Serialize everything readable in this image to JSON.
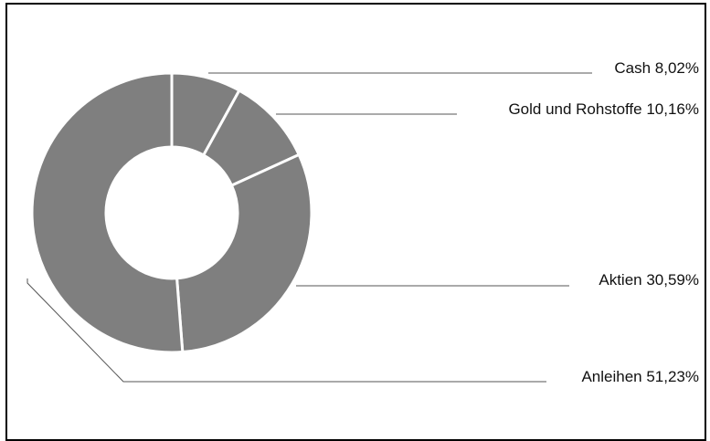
{
  "chart_data": {
    "type": "pie",
    "variant": "donut",
    "title": "",
    "legend": "none",
    "categories": [
      "Cash",
      "Gold und Rohstoffe",
      "Aktien",
      "Anleihen"
    ],
    "values": [
      8.02,
      10.16,
      30.59,
      51.23
    ],
    "unit": "%",
    "data_labels": [
      "Cash 8,02%",
      "Gold und Rohstoffe 10,16%",
      "Aktien 30,59%",
      "Anleihen 51,23%"
    ],
    "slice_color": "#7f7f7f",
    "separator_color": "#ffffff",
    "leader_color": "#555555",
    "background_color": "#ffffff",
    "border_color": "#000000"
  }
}
